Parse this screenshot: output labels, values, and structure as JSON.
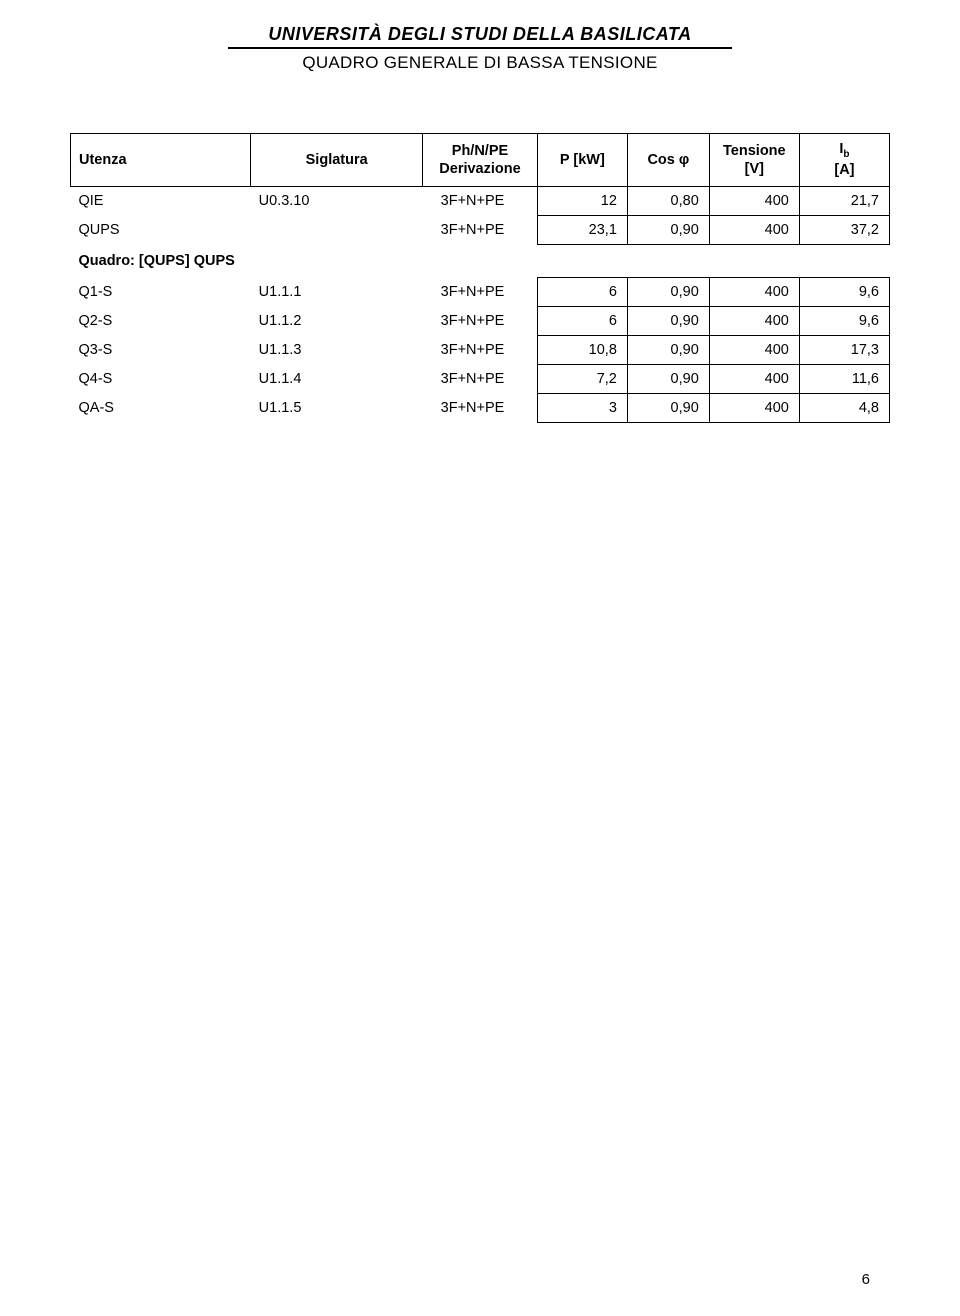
{
  "header": {
    "line1": "UNIVERSITÀ DEGLI STUDI DELLA BASILICATA",
    "line2": "QUADRO GENERALE DI BASSA TENSIONE"
  },
  "columns": {
    "utenza": "Utenza",
    "siglatura": "Siglatura",
    "derivazione_l1": "Ph/N/PE",
    "derivazione_l2": "Derivazione",
    "pkw": "P [kW]",
    "cosphi": "Cos φ",
    "tensione_l1": "Tensione",
    "tensione_l2": "[V]",
    "ib_label": "I",
    "ib_sub": "b",
    "ib_unit": "[A]"
  },
  "section_label": "Quadro: [QUPS] QUPS",
  "rows_before": [
    {
      "utenza": "QIE",
      "sigl": "U0.3.10",
      "deriv": "3F+N+PE",
      "pkw": "12",
      "cos": "0,80",
      "v": "400",
      "ib": "21,7"
    },
    {
      "utenza": "QUPS",
      "sigl": "",
      "deriv": "3F+N+PE",
      "pkw": "23,1",
      "cos": "0,90",
      "v": "400",
      "ib": "37,2"
    }
  ],
  "rows_after": [
    {
      "utenza": "Q1-S",
      "sigl": "U1.1.1",
      "deriv": "3F+N+PE",
      "pkw": "6",
      "cos": "0,90",
      "v": "400",
      "ib": "9,6"
    },
    {
      "utenza": "Q2-S",
      "sigl": "U1.1.2",
      "deriv": "3F+N+PE",
      "pkw": "6",
      "cos": "0,90",
      "v": "400",
      "ib": "9,6"
    },
    {
      "utenza": "Q3-S",
      "sigl": "U1.1.3",
      "deriv": "3F+N+PE",
      "pkw": "10,8",
      "cos": "0,90",
      "v": "400",
      "ib": "17,3"
    },
    {
      "utenza": "Q4-S",
      "sigl": "U1.1.4",
      "deriv": "3F+N+PE",
      "pkw": "7,2",
      "cos": "0,90",
      "v": "400",
      "ib": "11,6"
    },
    {
      "utenza": "QA-S",
      "sigl": "U1.1.5",
      "deriv": "3F+N+PE",
      "pkw": "3",
      "cos": "0,90",
      "v": "400",
      "ib": "4,8"
    }
  ],
  "page_number": "6",
  "colors": {
    "text": "#000000",
    "background": "#ffffff",
    "border": "#000000"
  }
}
